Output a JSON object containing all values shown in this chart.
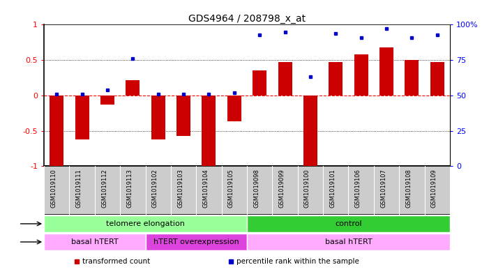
{
  "title": "GDS4964 / 208798_x_at",
  "samples": [
    "GSM1019110",
    "GSM1019111",
    "GSM1019112",
    "GSM1019113",
    "GSM1019102",
    "GSM1019103",
    "GSM1019104",
    "GSM1019105",
    "GSM1019098",
    "GSM1019099",
    "GSM1019100",
    "GSM1019101",
    "GSM1019106",
    "GSM1019107",
    "GSM1019108",
    "GSM1019109"
  ],
  "transformed_count": [
    -1.0,
    -0.62,
    -0.13,
    0.22,
    -0.62,
    -0.57,
    -1.0,
    -0.37,
    0.35,
    0.47,
    -1.0,
    0.47,
    0.58,
    0.68,
    0.5,
    0.47
  ],
  "percentile_rank": [
    0.02,
    0.02,
    0.08,
    0.52,
    0.02,
    0.02,
    0.02,
    0.04,
    0.86,
    0.9,
    0.26,
    0.88,
    0.82,
    0.94,
    0.82,
    0.86
  ],
  "bar_color": "#cc0000",
  "dot_color": "#0000cc",
  "ylim_left": [
    -1.0,
    1.0
  ],
  "ylim_right": [
    0,
    100
  ],
  "yticks_left": [
    -1.0,
    -0.5,
    0.0,
    0.5,
    1.0
  ],
  "yticks_right": [
    0,
    25,
    50,
    75,
    100
  ],
  "ytick_labels_left": [
    "-1",
    "-0.5",
    "0",
    "0.5",
    "1"
  ],
  "ytick_labels_right": [
    "0",
    "25",
    "50",
    "75",
    "100%"
  ],
  "hline_dotted": [
    -0.5,
    0.5
  ],
  "hline_red": 0.0,
  "protocol_groups": [
    {
      "label": "telomere elongation",
      "start": 0,
      "end": 8,
      "color": "#99ff99"
    },
    {
      "label": "control",
      "start": 8,
      "end": 16,
      "color": "#33cc33"
    }
  ],
  "genotype_groups": [
    {
      "label": "basal hTERT",
      "start": 0,
      "end": 4,
      "color": "#ffaaff"
    },
    {
      "label": "hTERT overexpression",
      "start": 4,
      "end": 8,
      "color": "#dd44dd"
    },
    {
      "label": "basal hTERT",
      "start": 8,
      "end": 16,
      "color": "#ffaaff"
    }
  ],
  "legend_items": [
    {
      "label": "transformed count",
      "color": "#cc0000",
      "marker": "s"
    },
    {
      "label": "percentile rank within the sample",
      "color": "#0000cc",
      "marker": "s"
    }
  ],
  "bg_color": "#ffffff",
  "bar_width": 0.55
}
